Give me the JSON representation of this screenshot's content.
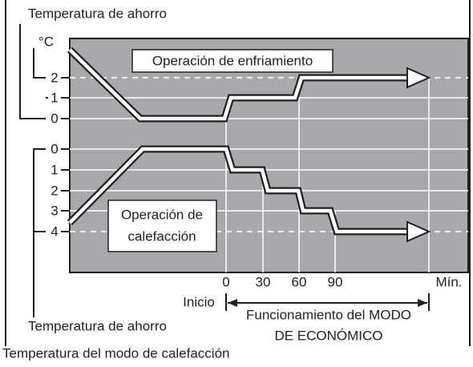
{
  "header": {
    "top_label": "Temperatura de ahorro",
    "unit": "°C"
  },
  "cooling": {
    "title": "Operación de enfriamiento",
    "ticks": [
      "2",
      "1",
      "0"
    ]
  },
  "heating": {
    "title_lines": [
      "Operación de",
      "calefacción"
    ],
    "ticks": [
      "0",
      "1",
      "2",
      "3",
      "4"
    ]
  },
  "time_axis": {
    "ticks": [
      "0",
      "30",
      "60",
      "90"
    ],
    "end_label": "Mín.",
    "start_label": "Inicio",
    "span_label_lines": [
      "Funcionamiento del MODO",
      "DE ECONÓMICO"
    ]
  },
  "footer": {
    "savings_label": "Temperatura de ahorro",
    "heating_mode_label": "Temperatura del modo de calefacción"
  }
}
